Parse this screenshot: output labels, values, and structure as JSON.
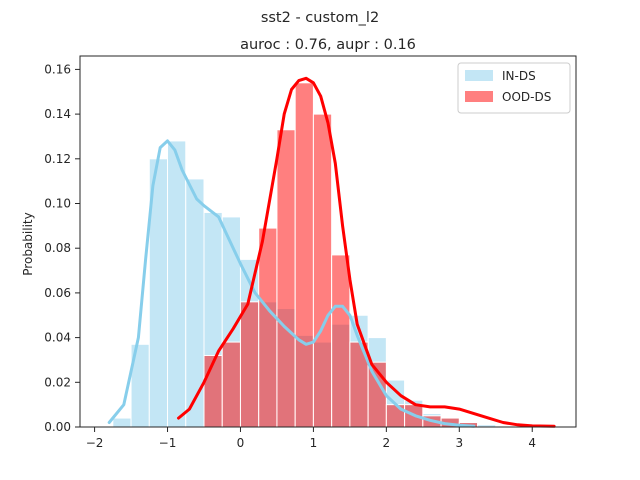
{
  "chart_data": {
    "type": "bar",
    "suptitle": "sst2 - custom_l2",
    "title": "auroc : 0.76, aupr : 0.16",
    "xlabel": "",
    "ylabel": "Probability",
    "xlim": [
      -2.2,
      4.6
    ],
    "ylim": [
      0,
      0.166
    ],
    "xticks": [
      -2,
      -1,
      0,
      1,
      2,
      3,
      4
    ],
    "yticks": [
      0.0,
      0.02,
      0.04,
      0.06,
      0.08,
      0.1,
      0.12,
      0.14,
      0.16
    ],
    "grid": false,
    "legend_position": "top-right",
    "series": [
      {
        "name": "IN-DS",
        "color": "#87ceeb",
        "bin_width": 0.25,
        "bin_start": -1.75,
        "values": [
          0.004,
          0.037,
          0.12,
          0.128,
          0.111,
          0.096,
          0.094,
          0.075,
          0.056,
          0.053,
          0.041,
          0.038,
          0.046,
          0.05,
          0.04,
          0.021,
          0.012,
          0.006,
          0.004,
          0.002,
          0.001
        ],
        "kde_x": [
          -1.8,
          -1.6,
          -1.4,
          -1.3,
          -1.2,
          -1.1,
          -1.0,
          -0.9,
          -0.8,
          -0.6,
          -0.5,
          -0.3,
          -0.2,
          0.0,
          0.2,
          0.4,
          0.6,
          0.8,
          0.9,
          1.0,
          1.1,
          1.2,
          1.3,
          1.4,
          1.5,
          1.6,
          1.8,
          2.0,
          2.2,
          2.4,
          2.6,
          2.8,
          3.0,
          3.2
        ],
        "kde_y": [
          0.002,
          0.01,
          0.04,
          0.075,
          0.108,
          0.125,
          0.128,
          0.124,
          0.115,
          0.102,
          0.099,
          0.094,
          0.087,
          0.073,
          0.06,
          0.052,
          0.045,
          0.039,
          0.037,
          0.038,
          0.043,
          0.05,
          0.054,
          0.054,
          0.05,
          0.041,
          0.025,
          0.014,
          0.008,
          0.005,
          0.003,
          0.0015,
          0.0008,
          0.0003
        ]
      },
      {
        "name": "OOD-DS",
        "color": "#ff0000",
        "bin_width": 0.25,
        "bin_start": -0.5,
        "values": [
          0.032,
          0.038,
          0.056,
          0.089,
          0.133,
          0.154,
          0.14,
          0.077,
          0.038,
          0.029,
          0.01,
          0.01,
          0.005,
          0.004,
          0.002
        ],
        "kde_x": [
          -0.85,
          -0.7,
          -0.5,
          -0.3,
          -0.1,
          0.1,
          0.3,
          0.5,
          0.6,
          0.7,
          0.8,
          0.9,
          1.0,
          1.1,
          1.2,
          1.3,
          1.4,
          1.5,
          1.6,
          1.8,
          2.0,
          2.2,
          2.4,
          2.6,
          2.8,
          3.0,
          3.2,
          3.4,
          3.6,
          3.8,
          4.0,
          4.3
        ],
        "kde_y": [
          0.004,
          0.008,
          0.02,
          0.034,
          0.044,
          0.055,
          0.083,
          0.12,
          0.14,
          0.151,
          0.155,
          0.156,
          0.154,
          0.148,
          0.136,
          0.118,
          0.09,
          0.066,
          0.046,
          0.028,
          0.02,
          0.014,
          0.01,
          0.009,
          0.009,
          0.008,
          0.006,
          0.004,
          0.002,
          0.001,
          0.0005,
          0.0003
        ]
      }
    ]
  }
}
